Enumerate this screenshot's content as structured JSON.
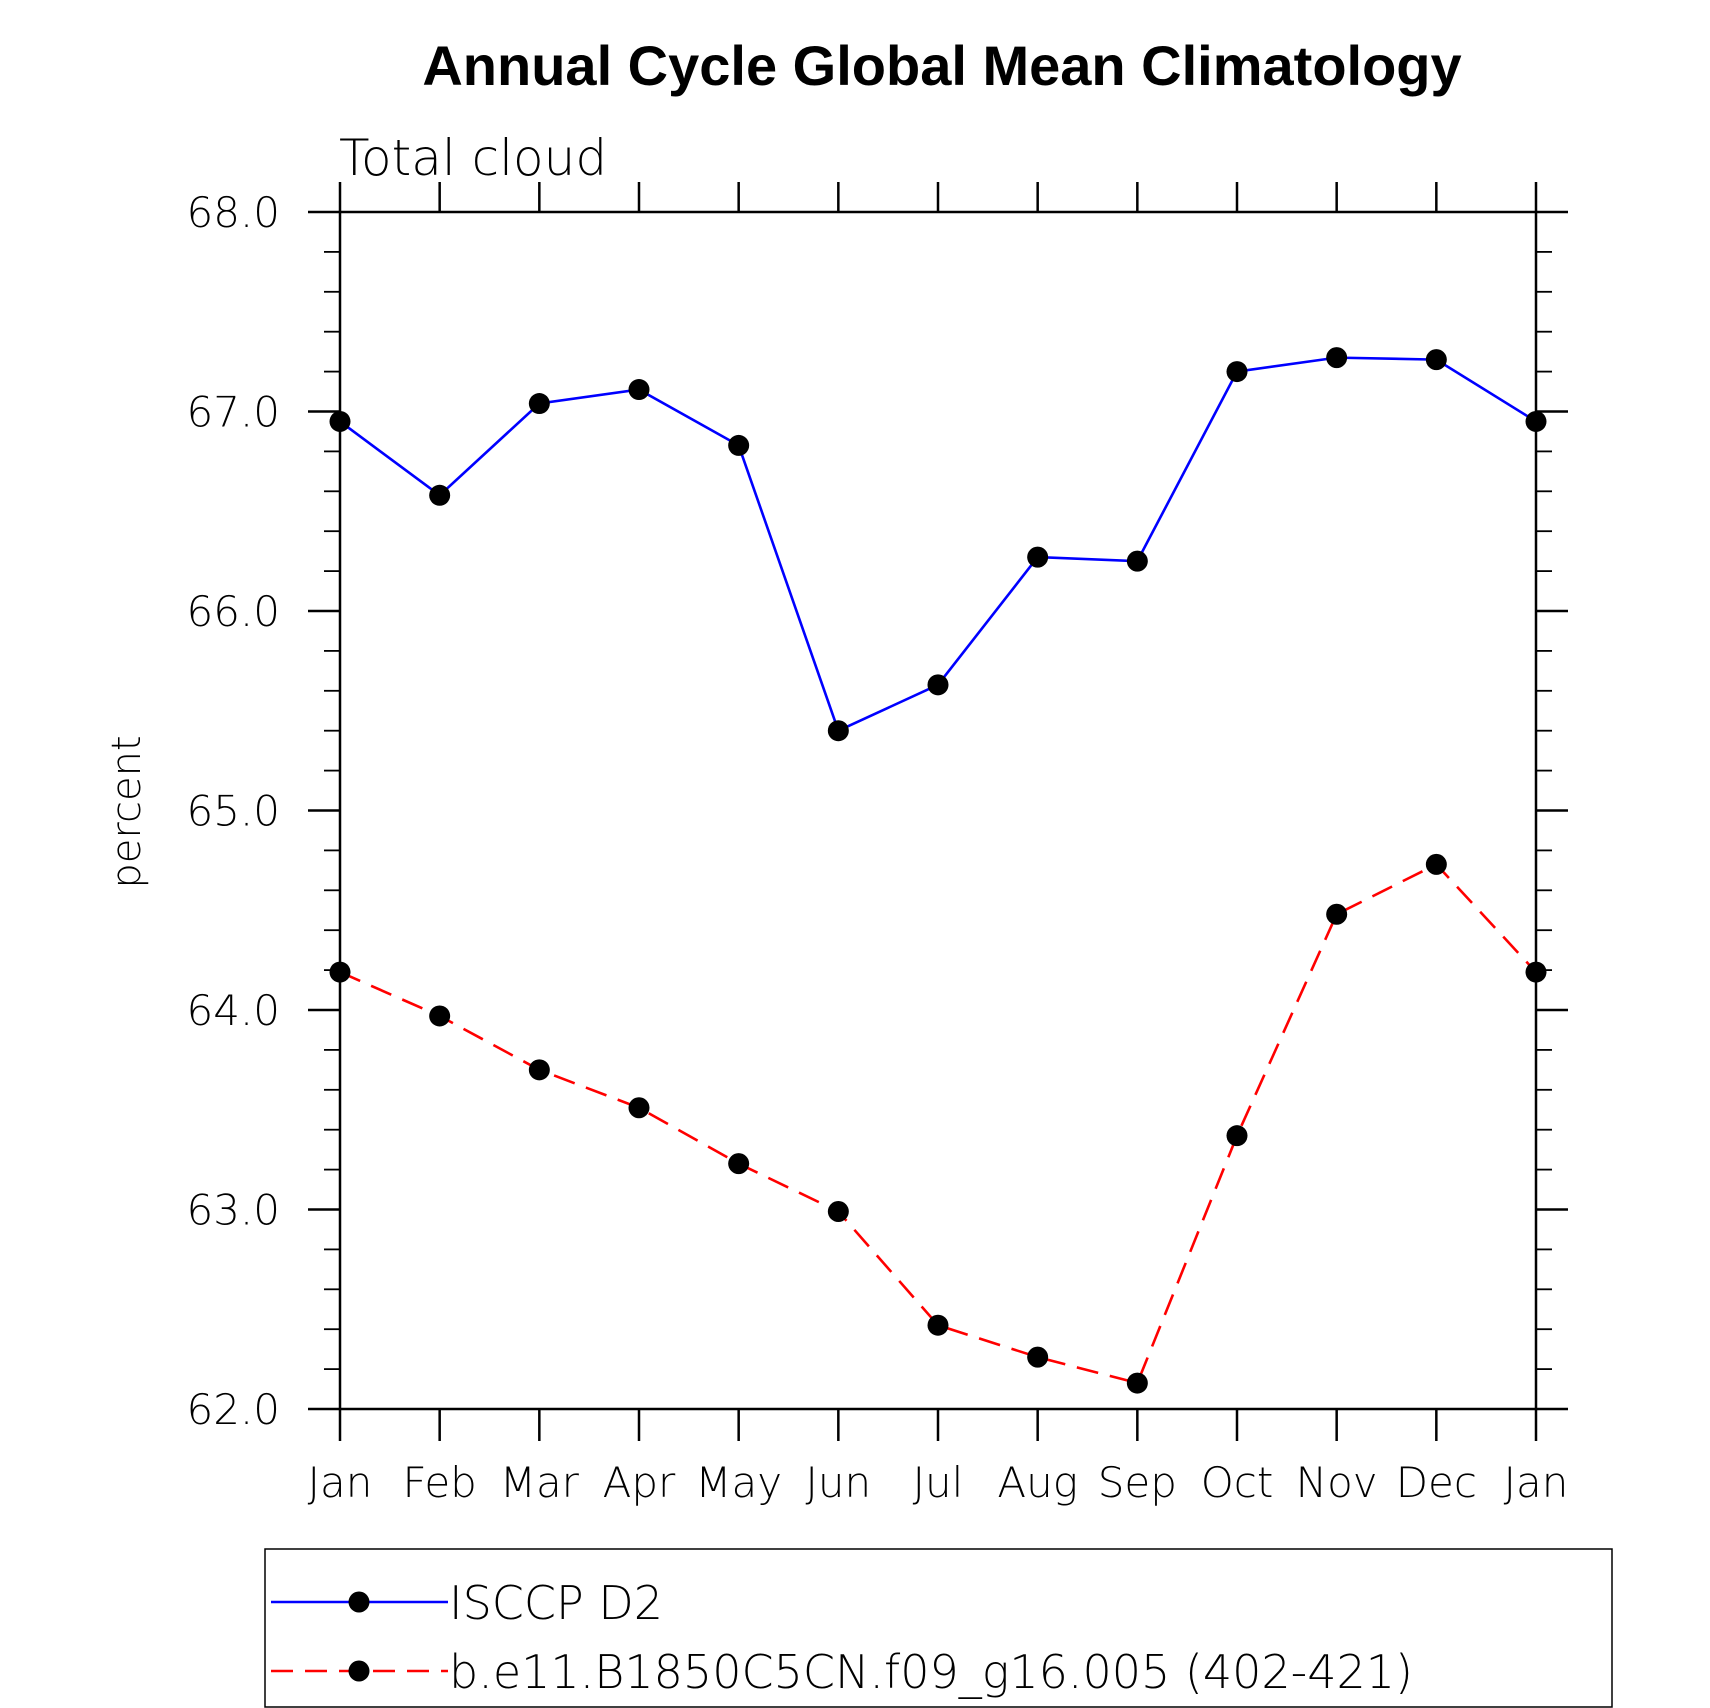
{
  "chart_data": {
    "type": "line",
    "title": "Annual Cycle Global Mean Climatology",
    "subtitle": "Total cloud",
    "ylabel": "percent",
    "xlabel": "",
    "ylim": [
      62.0,
      68.0
    ],
    "yticks": [
      62.0,
      63.0,
      64.0,
      65.0,
      66.0,
      67.0,
      68.0
    ],
    "ytick_labels": [
      "62.0",
      "63.0",
      "64.0",
      "65.0",
      "66.0",
      "67.0",
      "68.0"
    ],
    "categories": [
      "Jan",
      "Feb",
      "Mar",
      "Apr",
      "May",
      "Jun",
      "Jul",
      "Aug",
      "Sep",
      "Oct",
      "Nov",
      "Dec",
      "Jan"
    ],
    "series": [
      {
        "name": "ISCCP D2",
        "color": "#0000ff",
        "dash": "solid",
        "values": [
          66.95,
          66.58,
          67.04,
          67.11,
          66.83,
          65.4,
          65.63,
          66.27,
          66.25,
          67.2,
          67.27,
          67.26,
          66.95
        ]
      },
      {
        "name": "b.e11.B1850C5CN.f09_g16.005 (402-421)",
        "color": "#ff0000",
        "dash": "dashed",
        "values": [
          64.19,
          63.97,
          63.7,
          63.51,
          63.23,
          62.99,
          62.42,
          62.26,
          62.13,
          63.37,
          64.48,
          64.73,
          64.19
        ]
      }
    ],
    "legend_position": "bottom"
  }
}
